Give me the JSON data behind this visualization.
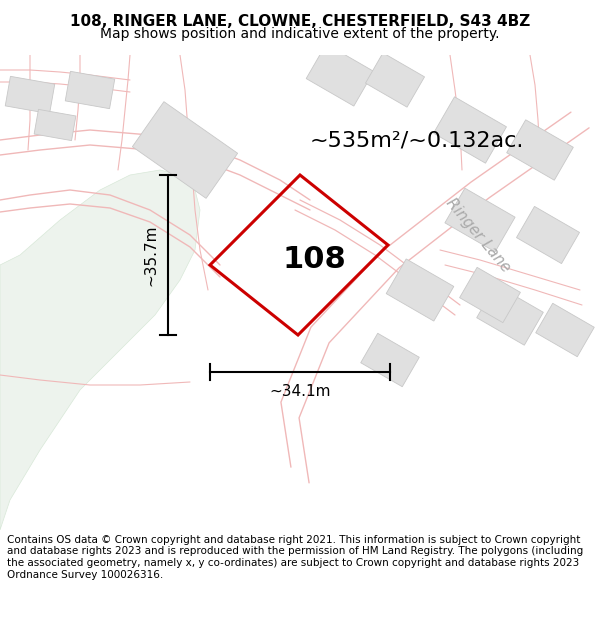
{
  "title": "108, RINGER LANE, CLOWNE, CHESTERFIELD, S43 4BZ",
  "subtitle": "Map shows position and indicative extent of the property.",
  "footer": "Contains OS data © Crown copyright and database right 2021. This information is subject to Crown copyright and database rights 2023 and is reproduced with the permission of HM Land Registry. The polygons (including the associated geometry, namely x, y co-ordinates) are subject to Crown copyright and database rights 2023 Ordnance Survey 100026316.",
  "area_label": "~535m²/~0.132ac.",
  "house_number": "108",
  "width_label": "~34.1m",
  "height_label": "~35.7m",
  "map_bg": "#ffffff",
  "road_line_color": "#f0b8b8",
  "building_edge_color": "#c8c8c8",
  "building_fill": "#e0e0e0",
  "green_fill": "#edf3ed",
  "green_edge": "#d8e8d8",
  "plot_color": "#cc0000",
  "plot_lw": 2.2,
  "road_name": "Ringer Lane",
  "title_fontsize": 11,
  "subtitle_fontsize": 10,
  "footer_fontsize": 7.5,
  "area_fontsize": 16,
  "num_fontsize": 22,
  "dim_fontsize": 11,
  "road_label_fontsize": 11,
  "road_label_color": "#aaaaaa"
}
